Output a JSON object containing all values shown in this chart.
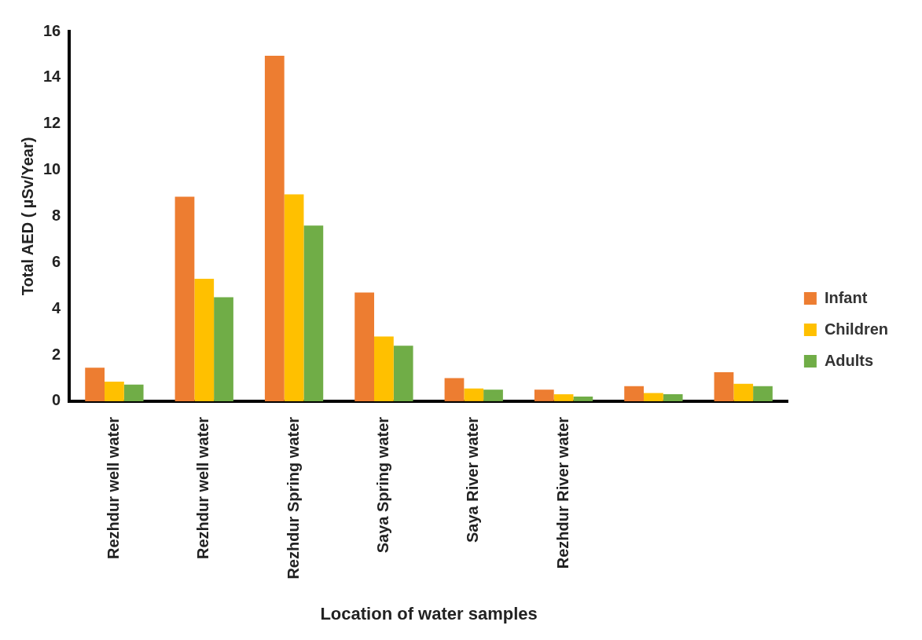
{
  "chart_data": {
    "type": "bar",
    "xlabel": "Location of water samples",
    "ylabel": "Total AED ( µSv/Year)",
    "categories": [
      "Rezhdur well water",
      "Rezhdur well water",
      "Rezhdur Spring water",
      "Saya Spring water",
      "Saya River water",
      "Rezhdur River water",
      null,
      null
    ],
    "series": [
      {
        "name": "Infant",
        "color": "#ed7d31",
        "values": [
          1.45,
          8.85,
          14.95,
          4.7,
          1.0,
          0.5,
          0.65,
          1.25
        ]
      },
      {
        "name": "Children",
        "color": "#ffc000",
        "values": [
          0.85,
          5.3,
          8.95,
          2.8,
          0.55,
          0.3,
          0.35,
          0.75
        ]
      },
      {
        "name": "Adults",
        "color": "#70ad47",
        "values": [
          0.72,
          4.5,
          7.6,
          2.4,
          0.5,
          0.2,
          0.3,
          0.65
        ]
      }
    ],
    "ylim": [
      0,
      16
    ],
    "yticks": [
      0,
      2,
      4,
      6,
      8,
      10,
      12,
      14,
      16
    ],
    "legend": "right"
  }
}
